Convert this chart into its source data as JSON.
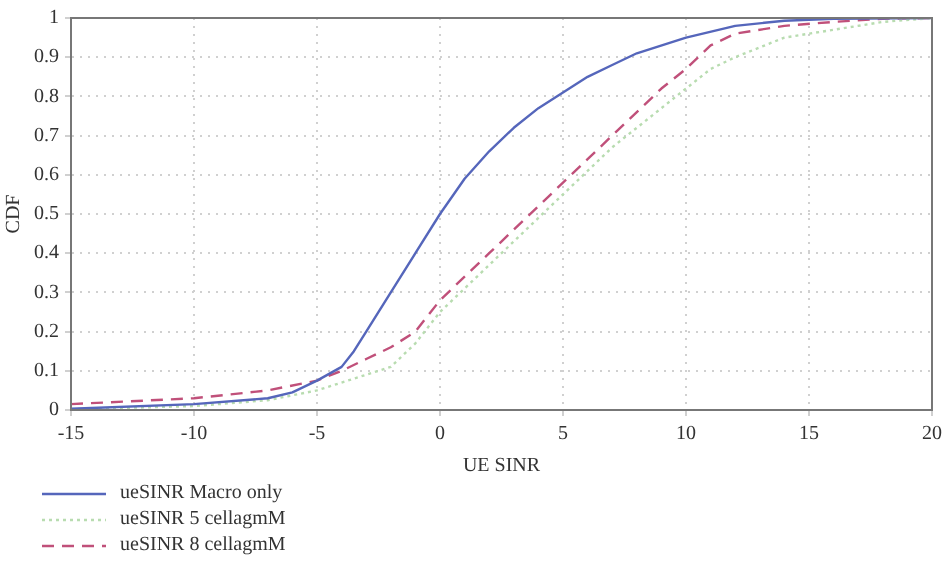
{
  "chart_data": {
    "type": "line",
    "xlabel": "UE SINR",
    "ylabel": "CDF",
    "xlim": [
      -15,
      20
    ],
    "xticks": [
      -15,
      -10,
      -5,
      0,
      5,
      10,
      15,
      20
    ],
    "ylim": [
      0,
      1
    ],
    "yticks": [
      0,
      0.1,
      0.2,
      0.3,
      0.4,
      0.5,
      0.6,
      0.7,
      0.8,
      0.9,
      1
    ],
    "grid": true,
    "legend": "bottom left",
    "marker": "none",
    "series": [
      {
        "name": "ueSINR Macro only",
        "color": "#5566bb",
        "line_style": "solid",
        "x": [
          -15,
          -10,
          -7,
          -6,
          -5,
          -4,
          -3.5,
          -3,
          -2,
          -1,
          0,
          1,
          2,
          3,
          4,
          5,
          6,
          7,
          8,
          10,
          12,
          14,
          16,
          20
        ],
        "values": [
          0.003,
          0.015,
          0.03,
          0.045,
          0.075,
          0.11,
          0.15,
          0.2,
          0.3,
          0.4,
          0.5,
          0.59,
          0.66,
          0.72,
          0.77,
          0.81,
          0.85,
          0.88,
          0.91,
          0.95,
          0.98,
          0.993,
          0.998,
          1
        ]
      },
      {
        "name": "ueSINR 5 cellagmM",
        "color": "#b8dcb0",
        "line_style": "dotted",
        "x": [
          -15,
          -10,
          -7,
          -5,
          -4,
          -3,
          -2,
          -1,
          0,
          1,
          2,
          3,
          4,
          5,
          6,
          7,
          8,
          9,
          10,
          11,
          12,
          14,
          16,
          18,
          20
        ],
        "values": [
          0.002,
          0.01,
          0.025,
          0.05,
          0.07,
          0.09,
          0.11,
          0.17,
          0.25,
          0.31,
          0.37,
          0.43,
          0.49,
          0.55,
          0.61,
          0.67,
          0.72,
          0.77,
          0.82,
          0.87,
          0.9,
          0.95,
          0.97,
          0.99,
          1
        ]
      },
      {
        "name": "ueSINR 8 cellagmM",
        "color": "#c0507a",
        "line_style": "dashed",
        "x": [
          -15,
          -10,
          -7,
          -5,
          -4,
          -3,
          -2,
          -1,
          0,
          1,
          2,
          3,
          4,
          5,
          6,
          7,
          8,
          9,
          10,
          11,
          12,
          14,
          16,
          18,
          20
        ],
        "values": [
          0.015,
          0.03,
          0.05,
          0.075,
          0.1,
          0.13,
          0.16,
          0.2,
          0.28,
          0.34,
          0.4,
          0.46,
          0.52,
          0.58,
          0.64,
          0.7,
          0.76,
          0.82,
          0.87,
          0.93,
          0.96,
          0.98,
          0.99,
          0.998,
          1
        ]
      }
    ]
  }
}
